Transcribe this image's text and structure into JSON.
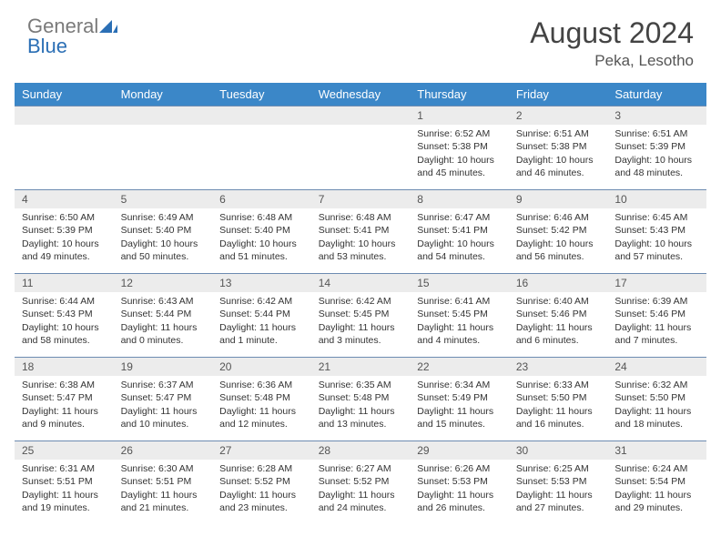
{
  "logo": {
    "word1": "General",
    "word2": "Blue"
  },
  "title": "August 2024",
  "location": "Peka, Lesotho",
  "colors": {
    "header_bg": "#3b87c8",
    "header_text": "#ffffff",
    "daynum_bg": "#ececec",
    "row_divider": "#6c8bb1",
    "logo_gray": "#7a7a7a",
    "logo_blue": "#2b6fb5"
  },
  "weekdays": [
    "Sunday",
    "Monday",
    "Tuesday",
    "Wednesday",
    "Thursday",
    "Friday",
    "Saturday"
  ],
  "weeks": [
    [
      null,
      null,
      null,
      null,
      {
        "n": "1",
        "sunrise": "6:52 AM",
        "sunset": "5:38 PM",
        "daylight": "10 hours and 45 minutes."
      },
      {
        "n": "2",
        "sunrise": "6:51 AM",
        "sunset": "5:38 PM",
        "daylight": "10 hours and 46 minutes."
      },
      {
        "n": "3",
        "sunrise": "6:51 AM",
        "sunset": "5:39 PM",
        "daylight": "10 hours and 48 minutes."
      }
    ],
    [
      {
        "n": "4",
        "sunrise": "6:50 AM",
        "sunset": "5:39 PM",
        "daylight": "10 hours and 49 minutes."
      },
      {
        "n": "5",
        "sunrise": "6:49 AM",
        "sunset": "5:40 PM",
        "daylight": "10 hours and 50 minutes."
      },
      {
        "n": "6",
        "sunrise": "6:48 AM",
        "sunset": "5:40 PM",
        "daylight": "10 hours and 51 minutes."
      },
      {
        "n": "7",
        "sunrise": "6:48 AM",
        "sunset": "5:41 PM",
        "daylight": "10 hours and 53 minutes."
      },
      {
        "n": "8",
        "sunrise": "6:47 AM",
        "sunset": "5:41 PM",
        "daylight": "10 hours and 54 minutes."
      },
      {
        "n": "9",
        "sunrise": "6:46 AM",
        "sunset": "5:42 PM",
        "daylight": "10 hours and 56 minutes."
      },
      {
        "n": "10",
        "sunrise": "6:45 AM",
        "sunset": "5:43 PM",
        "daylight": "10 hours and 57 minutes."
      }
    ],
    [
      {
        "n": "11",
        "sunrise": "6:44 AM",
        "sunset": "5:43 PM",
        "daylight": "10 hours and 58 minutes."
      },
      {
        "n": "12",
        "sunrise": "6:43 AM",
        "sunset": "5:44 PM",
        "daylight": "11 hours and 0 minutes."
      },
      {
        "n": "13",
        "sunrise": "6:42 AM",
        "sunset": "5:44 PM",
        "daylight": "11 hours and 1 minute."
      },
      {
        "n": "14",
        "sunrise": "6:42 AM",
        "sunset": "5:45 PM",
        "daylight": "11 hours and 3 minutes."
      },
      {
        "n": "15",
        "sunrise": "6:41 AM",
        "sunset": "5:45 PM",
        "daylight": "11 hours and 4 minutes."
      },
      {
        "n": "16",
        "sunrise": "6:40 AM",
        "sunset": "5:46 PM",
        "daylight": "11 hours and 6 minutes."
      },
      {
        "n": "17",
        "sunrise": "6:39 AM",
        "sunset": "5:46 PM",
        "daylight": "11 hours and 7 minutes."
      }
    ],
    [
      {
        "n": "18",
        "sunrise": "6:38 AM",
        "sunset": "5:47 PM",
        "daylight": "11 hours and 9 minutes."
      },
      {
        "n": "19",
        "sunrise": "6:37 AM",
        "sunset": "5:47 PM",
        "daylight": "11 hours and 10 minutes."
      },
      {
        "n": "20",
        "sunrise": "6:36 AM",
        "sunset": "5:48 PM",
        "daylight": "11 hours and 12 minutes."
      },
      {
        "n": "21",
        "sunrise": "6:35 AM",
        "sunset": "5:48 PM",
        "daylight": "11 hours and 13 minutes."
      },
      {
        "n": "22",
        "sunrise": "6:34 AM",
        "sunset": "5:49 PM",
        "daylight": "11 hours and 15 minutes."
      },
      {
        "n": "23",
        "sunrise": "6:33 AM",
        "sunset": "5:50 PM",
        "daylight": "11 hours and 16 minutes."
      },
      {
        "n": "24",
        "sunrise": "6:32 AM",
        "sunset": "5:50 PM",
        "daylight": "11 hours and 18 minutes."
      }
    ],
    [
      {
        "n": "25",
        "sunrise": "6:31 AM",
        "sunset": "5:51 PM",
        "daylight": "11 hours and 19 minutes."
      },
      {
        "n": "26",
        "sunrise": "6:30 AM",
        "sunset": "5:51 PM",
        "daylight": "11 hours and 21 minutes."
      },
      {
        "n": "27",
        "sunrise": "6:28 AM",
        "sunset": "5:52 PM",
        "daylight": "11 hours and 23 minutes."
      },
      {
        "n": "28",
        "sunrise": "6:27 AM",
        "sunset": "5:52 PM",
        "daylight": "11 hours and 24 minutes."
      },
      {
        "n": "29",
        "sunrise": "6:26 AM",
        "sunset": "5:53 PM",
        "daylight": "11 hours and 26 minutes."
      },
      {
        "n": "30",
        "sunrise": "6:25 AM",
        "sunset": "5:53 PM",
        "daylight": "11 hours and 27 minutes."
      },
      {
        "n": "31",
        "sunrise": "6:24 AM",
        "sunset": "5:54 PM",
        "daylight": "11 hours and 29 minutes."
      }
    ]
  ],
  "labels": {
    "sunrise": "Sunrise:",
    "sunset": "Sunset:",
    "daylight": "Daylight:"
  }
}
